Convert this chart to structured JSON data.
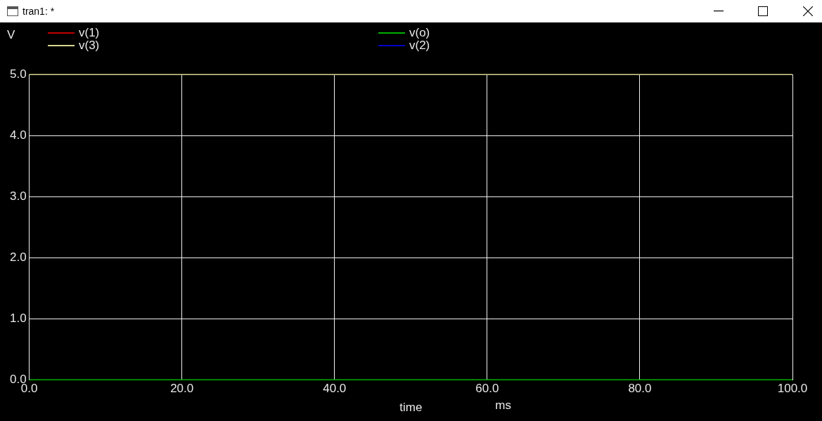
{
  "chart_data": {
    "type": "line",
    "title": "tran1: *",
    "ylabel": "V",
    "xlabel": "time",
    "annotations": [
      "ms"
    ],
    "x": [
      0,
      100
    ],
    "series": [
      {
        "name": "v(1)",
        "color": "#c00000",
        "values": [
          null,
          null
        ]
      },
      {
        "name": "v(o)",
        "color": "#00b000",
        "values": [
          0,
          0
        ]
      },
      {
        "name": "v(3)",
        "color": "#d8d890",
        "values": [
          5,
          5
        ]
      },
      {
        "name": "v(2)",
        "color": "#0000c8",
        "values": [
          null,
          null
        ]
      }
    ],
    "xlim": [
      0,
      100
    ],
    "xticks": [
      {
        "value": 0,
        "label": "0.0"
      },
      {
        "value": 20,
        "label": "20.0"
      },
      {
        "value": 40,
        "label": "40.0"
      },
      {
        "value": 60,
        "label": "60.0"
      },
      {
        "value": 80,
        "label": "80.0"
      },
      {
        "value": 100,
        "label": "100.0"
      }
    ],
    "ylim": [
      0,
      5
    ],
    "yticks": [
      {
        "value": 0,
        "label": "0.0"
      },
      {
        "value": 1,
        "label": "1.0"
      },
      {
        "value": 2,
        "label": "2.0"
      },
      {
        "value": 3,
        "label": "3.0"
      },
      {
        "value": 4,
        "label": "4.0"
      },
      {
        "value": 5,
        "label": "5.0"
      }
    ],
    "grid": true,
    "legend": "top",
    "marker": "none",
    "line_style": "solid"
  }
}
